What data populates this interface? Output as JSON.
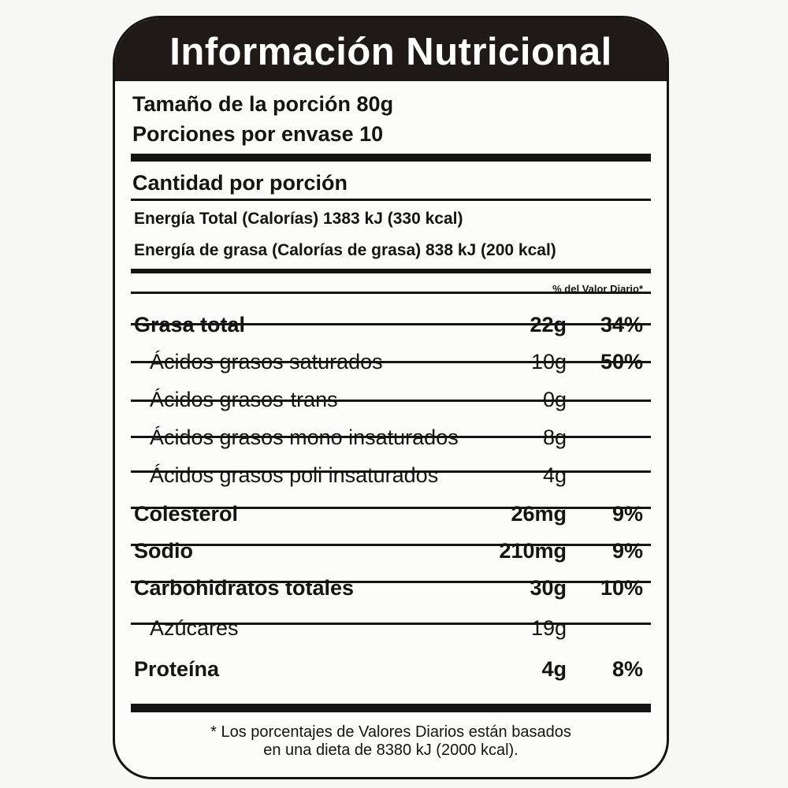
{
  "title": "Información Nutricional",
  "serving_size": "Tamaño de la porción 80g",
  "servings_per_container": "Porciones por envase 10",
  "amount_per_serving": "Cantidad por porción",
  "energy_total": "Energía Total (Calorías) 1383 kJ (330 kcal)",
  "energy_fat": "Energía de grasa (Calorías de grasa) 838 kJ (200 kcal)",
  "dv_header": "% del Valor Diario*",
  "nutrients": [
    {
      "name": "Grasa total",
      "amount": "22g",
      "dv": "34%",
      "bold": true
    },
    {
      "name": "Ácidos grasos saturados",
      "amount": "10g",
      "dv": "50%",
      "bold": false
    },
    {
      "name": "Ácidos grasos-trans",
      "amount": "0g",
      "dv": "",
      "bold": false
    },
    {
      "name": "Ácidos grasos mono insaturados",
      "amount": "8g",
      "dv": "",
      "bold": false
    },
    {
      "name": "Ácidos grasos poli insaturados",
      "amount": "4g",
      "dv": "",
      "bold": false
    },
    {
      "name": "Colesterol",
      "amount": "26mg",
      "dv": "9%",
      "bold": true
    },
    {
      "name": "Sodio",
      "amount": "210mg",
      "dv": "9%",
      "bold": true
    },
    {
      "name": "Carbohidratos totales",
      "amount": "30g",
      "dv": "10%",
      "bold": true
    },
    {
      "name": "Azúcares",
      "amount": "19g",
      "dv": "",
      "bold": false
    },
    {
      "name": "Proteína",
      "amount": "4g",
      "dv": "8%",
      "bold": true
    }
  ],
  "footnote_line1": "* Los porcentajes de Valores Diarios están basados",
  "footnote_line2": "en una dieta de 8380 kJ (2000 kcal)."
}
